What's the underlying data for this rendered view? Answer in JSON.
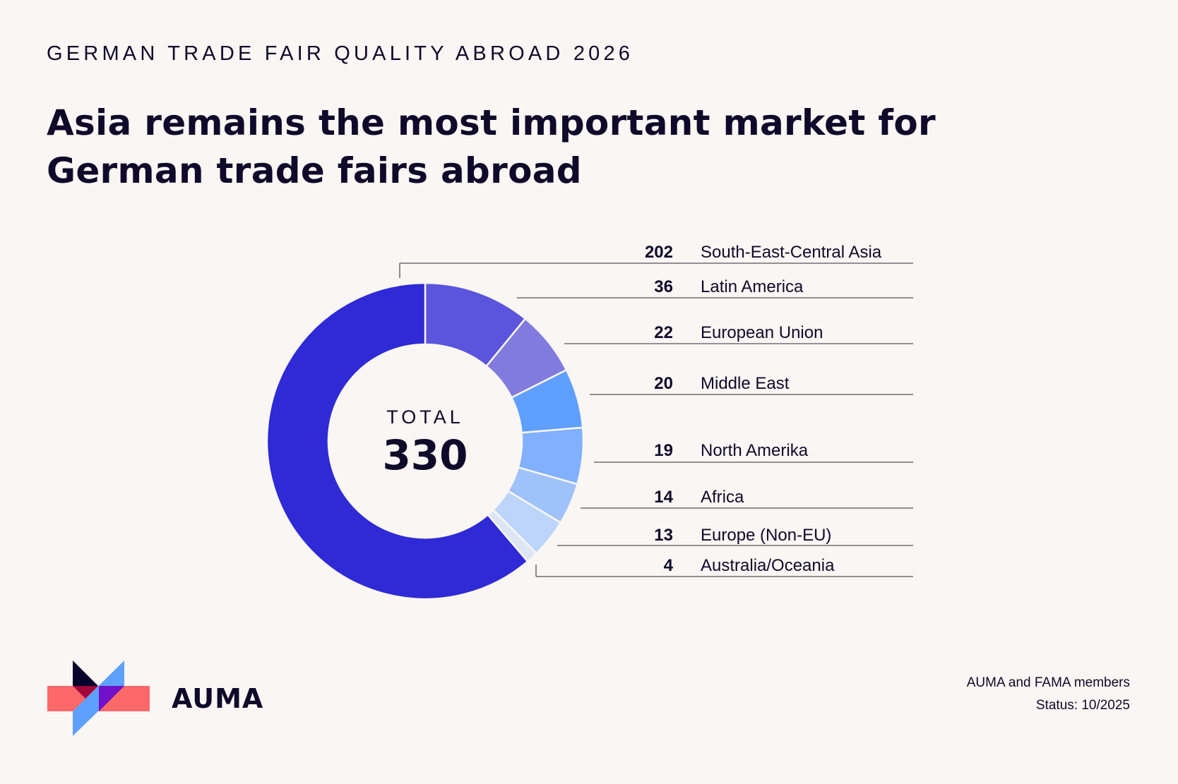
{
  "header": {
    "kicker": "GERMAN TRADE FAIR QUALITY ABROAD 2026",
    "title": "Asia remains the most important market for German trade fairs abroad"
  },
  "chart_data": {
    "type": "pie",
    "variant": "donut",
    "center_label": "TOTAL",
    "total": 330,
    "slices": [
      {
        "label": "Latin America",
        "value": 36,
        "color": "#5a55dc"
      },
      {
        "label": "European Union",
        "value": 22,
        "color": "#817be0"
      },
      {
        "label": "Middle East",
        "value": 20,
        "color": "#5f9fff"
      },
      {
        "label": "North Amerika",
        "value": 19,
        "color": "#80b0ff"
      },
      {
        "label": "Africa",
        "value": 14,
        "color": "#a0c2fb"
      },
      {
        "label": "Europe (Non-EU)",
        "value": 13,
        "color": "#bdd5fa"
      },
      {
        "label": "Australia/Oceania",
        "value": 4,
        "color": "#dde6f5"
      },
      {
        "label": "South-East-Central Asia",
        "value": 202,
        "color": "#2f2ad6"
      }
    ]
  },
  "footer": {
    "source_line1": "AUMA and FAMA members",
    "source_line2": "Status: 10/2025",
    "brand": "AUMA"
  }
}
